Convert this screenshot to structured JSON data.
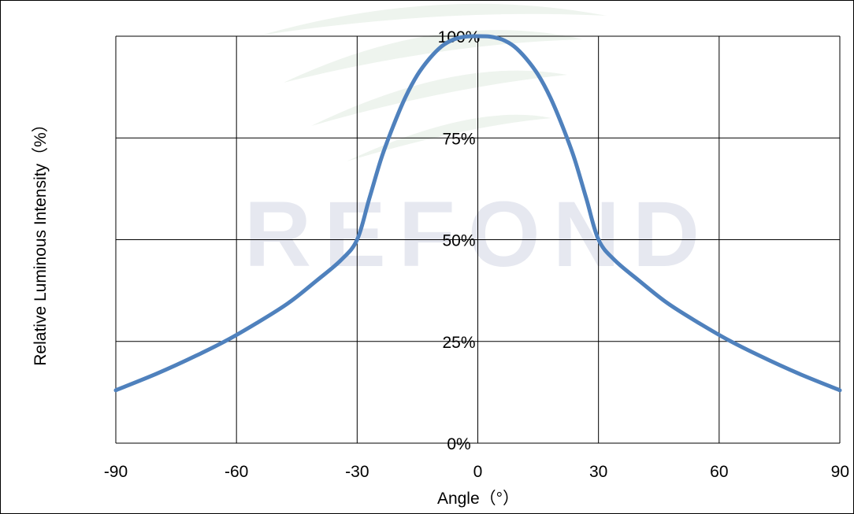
{
  "watermark": {
    "text": "REFOND",
    "color": "#e6e8f0",
    "swoosh_color": "#eef4ee"
  },
  "chart_data": {
    "type": "line",
    "xlabel": "Angle（°）",
    "ylabel": "Relative Luminous Intensity（%）",
    "xlim": [
      -90,
      90
    ],
    "ylim": [
      0,
      100
    ],
    "x_ticks": [
      "-90",
      "-60",
      "-30",
      "0",
      "30",
      "60",
      "90"
    ],
    "y_ticks": [
      "0%",
      "25%",
      "50%",
      "75%",
      "100%"
    ],
    "grid": true,
    "series": [
      {
        "color": "#4f81bd",
        "x": [
          -90,
          -80,
          -70,
          -62,
          -55,
          -47,
          -40,
          -34,
          -30,
          -27,
          -24,
          -21,
          -18,
          -15,
          -12,
          -9,
          -6,
          -3,
          0,
          3,
          6,
          9,
          12,
          15,
          18,
          21,
          24,
          27,
          30,
          34,
          40,
          47,
          55,
          62,
          70,
          80,
          90
        ],
        "y": [
          13,
          17,
          21.5,
          25.5,
          29.5,
          34.5,
          40,
          45,
          50,
          60,
          70,
          78,
          85,
          90.5,
          94.5,
          97.5,
          99.2,
          99.9,
          100,
          99.9,
          99.2,
          97.5,
          94.5,
          90.5,
          85,
          78,
          70,
          60,
          50,
          45,
          40,
          34.5,
          29.5,
          25.5,
          21.5,
          17,
          13
        ]
      }
    ]
  }
}
